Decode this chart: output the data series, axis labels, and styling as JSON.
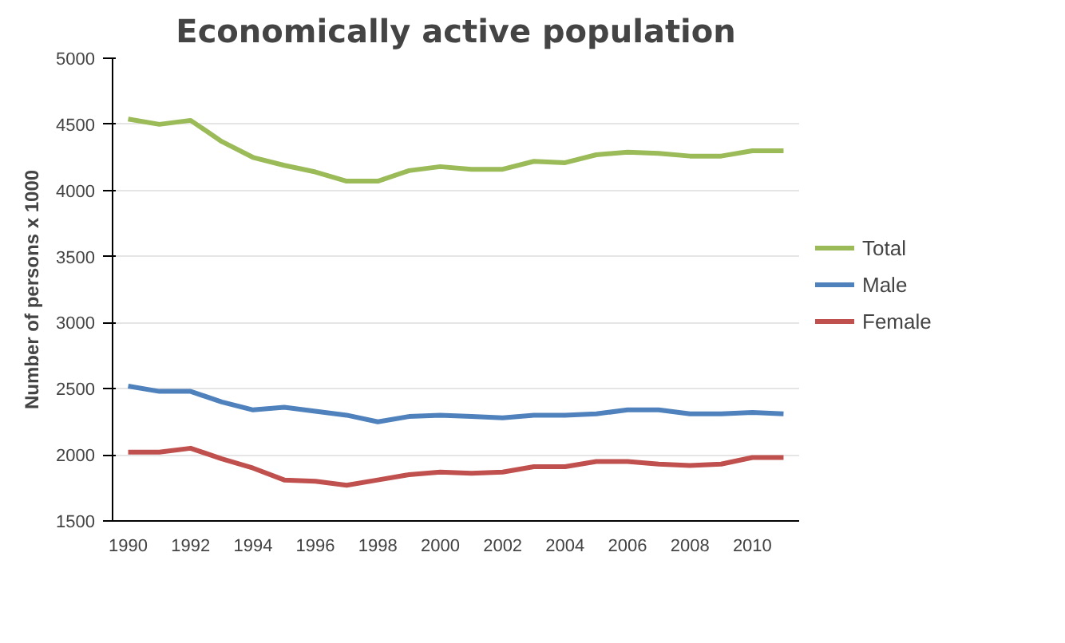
{
  "chart_data": {
    "type": "line",
    "title": "Economically active population",
    "ylabel": "Number of persons x 1000",
    "categories": [
      "1990",
      null,
      "1992",
      null,
      "1994",
      null,
      "1996",
      null,
      "1998",
      null,
      "2000",
      null,
      "2002",
      null,
      "2004",
      null,
      "2006",
      null,
      "2008",
      null,
      "2010",
      null
    ],
    "series": [
      {
        "name": "Total",
        "color": "#9bbb59",
        "values": [
          4540,
          4500,
          4530,
          4370,
          4250,
          4190,
          4140,
          4070,
          4070,
          4150,
          4180,
          4160,
          4160,
          4220,
          4210,
          4270,
          4290,
          4280,
          4260,
          4260,
          4300,
          4300
        ]
      },
      {
        "name": "Male",
        "color": "#4f81bd",
        "values": [
          2520,
          2480,
          2480,
          2400,
          2340,
          2360,
          2330,
          2300,
          2250,
          2290,
          2300,
          2290,
          2280,
          2300,
          2300,
          2310,
          2340,
          2340,
          2310,
          2310,
          2320,
          2310
        ]
      },
      {
        "name": "Female",
        "color": "#c0504d",
        "values": [
          2020,
          2020,
          2050,
          1970,
          1900,
          1810,
          1800,
          1770,
          1810,
          1850,
          1870,
          1860,
          1870,
          1910,
          1910,
          1950,
          1950,
          1930,
          1920,
          1930,
          1980,
          1980
        ]
      }
    ],
    "ylim": [
      1500,
      5000
    ],
    "yticks": [
      1500,
      2000,
      2500,
      3000,
      3500,
      4000,
      4500,
      5000
    ],
    "grid": "y",
    "legend": "right",
    "marker": "none",
    "line_style": "solid"
  }
}
